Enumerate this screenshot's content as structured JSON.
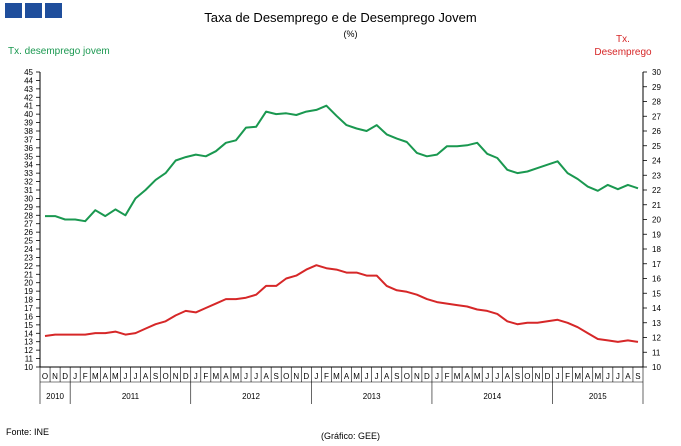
{
  "header": {
    "logo_icon": "ine-logo-icon",
    "title": "Taxa de Desemprego e de Desemprego Jovem",
    "subtitle": "(%)"
  },
  "axis_labels": {
    "left": "Tx. desemprego jovem",
    "right_line1": "Tx.",
    "right_line2": "Desemprego"
  },
  "footer": {
    "source": "Fonte: INE",
    "credit": "(Gráfico: GEE)"
  },
  "chart_data": {
    "type": "line",
    "title": "Taxa de Desemprego e de Desemprego Jovem",
    "subtitle": "(%)",
    "x_month_labels": [
      "O",
      "N",
      "D",
      "J",
      "F",
      "M",
      "A",
      "M",
      "J",
      "J",
      "A",
      "S",
      "O",
      "N",
      "D",
      "J",
      "F",
      "M",
      "A",
      "M",
      "J",
      "J",
      "A",
      "S",
      "O",
      "N",
      "D",
      "J",
      "F",
      "M",
      "A",
      "M",
      "J",
      "J",
      "A",
      "S",
      "O",
      "N",
      "D",
      "J",
      "F",
      "M",
      "A",
      "M",
      "J",
      "J",
      "A",
      "S",
      "O",
      "N",
      "D",
      "J",
      "F",
      "M",
      "A",
      "M",
      "J",
      "J",
      "A",
      "S"
    ],
    "years": [
      {
        "label": "2010",
        "start": 0,
        "count": 3
      },
      {
        "label": "2011",
        "start": 3,
        "count": 12
      },
      {
        "label": "2012",
        "start": 15,
        "count": 12
      },
      {
        "label": "2013",
        "start": 27,
        "count": 12
      },
      {
        "label": "2014",
        "start": 39,
        "count": 12
      },
      {
        "label": "2015",
        "start": 51,
        "count": 9
      }
    ],
    "y_left": {
      "label": "Tx. desemprego jovem",
      "min": 10,
      "max": 45,
      "step": 1
    },
    "y_right": {
      "label": "Tx. Desemprego",
      "min": 10,
      "max": 30,
      "step": 1
    },
    "grid": false,
    "series": [
      {
        "name": "Tx. desemprego jovem",
        "axis": "left",
        "color": "#1a9850",
        "values": [
          27.9,
          27.9,
          27.5,
          27.5,
          27.3,
          28.6,
          27.9,
          28.7,
          28.0,
          30.0,
          31.0,
          32.2,
          33.0,
          34.5,
          34.9,
          35.2,
          35.0,
          35.6,
          36.6,
          36.9,
          38.4,
          38.5,
          40.3,
          40.0,
          40.1,
          39.9,
          40.3,
          40.5,
          41.0,
          39.8,
          38.7,
          38.3,
          38.0,
          38.7,
          37.6,
          37.1,
          36.7,
          35.4,
          35.0,
          35.2,
          36.2,
          36.2,
          36.3,
          36.6,
          35.3,
          34.8,
          33.4,
          33.0,
          33.2,
          33.6,
          34.0,
          34.4,
          33.0,
          32.3,
          31.4,
          30.9,
          31.6,
          31.1,
          31.6,
          31.2
        ]
      },
      {
        "name": "Tx. Desemprego",
        "axis": "right",
        "color": "#d62728",
        "values": [
          12.1,
          12.2,
          12.2,
          12.2,
          12.2,
          12.3,
          12.3,
          12.4,
          12.2,
          12.3,
          12.6,
          12.9,
          13.1,
          13.5,
          13.8,
          13.7,
          14.0,
          14.3,
          14.6,
          14.6,
          14.7,
          14.9,
          15.5,
          15.5,
          16.0,
          16.2,
          16.6,
          16.9,
          16.7,
          16.6,
          16.4,
          16.4,
          16.2,
          16.2,
          15.5,
          15.2,
          15.1,
          14.9,
          14.6,
          14.4,
          14.3,
          14.2,
          14.1,
          13.9,
          13.8,
          13.6,
          13.1,
          12.9,
          13.0,
          13.0,
          13.1,
          13.2,
          13.0,
          12.7,
          12.3,
          11.9,
          11.8,
          11.7,
          11.8,
          11.7
        ]
      }
    ]
  }
}
